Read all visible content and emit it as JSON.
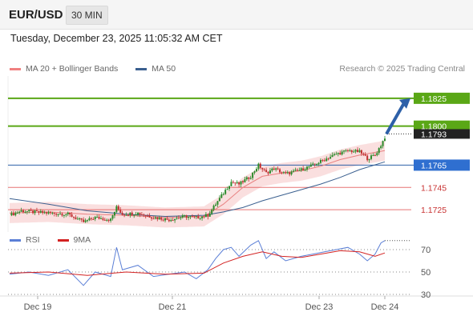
{
  "header": {
    "pair": "EUR/USD",
    "interval": "30 MIN",
    "timestamp": "Tuesday, December 23, 2025 11:05:32 AM CET",
    "credit": "Research © 2025 Trading Central"
  },
  "colors": {
    "green": "#5aa716",
    "blue": "#2d60a8",
    "red": "#e05050",
    "bollinger": "#f3a0a0",
    "ma50": "#3a5f8f",
    "rsi": "#5b7fd6",
    "rsi_ma": "#d32222"
  },
  "chart_data": [
    {
      "type": "candlestick",
      "legend": [
        {
          "label": "MA 20 + Bollinger Bands",
          "color": "#f08080"
        },
        {
          "label": "MA 50",
          "color": "#3a5f8f"
        }
      ],
      "x_ticks": [
        "Dec 19",
        "Dec 21",
        "Dec 23",
        "Dec 24"
      ],
      "ylim": [
        1.1705,
        1.1845
      ],
      "levels": [
        {
          "value": 1.1825,
          "label": "1.1825",
          "style": "green-line"
        },
        {
          "value": 1.18,
          "label": "1.1800",
          "style": "green-line"
        },
        {
          "value": 1.1793,
          "label": "1.1793",
          "style": "current-price"
        },
        {
          "value": 1.1765,
          "label": "1.1765",
          "style": "blue-line"
        },
        {
          "value": 1.1745,
          "label": "1.1745",
          "style": "red-line"
        },
        {
          "value": 1.1725,
          "label": "1.1725",
          "style": "red-line"
        }
      ],
      "target_arrow": {
        "from": 1.1793,
        "to": 1.1825
      },
      "price_path": [
        [
          0,
          1.172
        ],
        [
          6,
          1.1724
        ],
        [
          12,
          1.1723
        ],
        [
          20,
          1.1722
        ],
        [
          30,
          1.1721
        ],
        [
          38,
          1.1714
        ],
        [
          44,
          1.1718
        ],
        [
          52,
          1.1716
        ],
        [
          55,
          1.1727
        ],
        [
          58,
          1.1721
        ],
        [
          66,
          1.1722
        ],
        [
          74,
          1.1718
        ],
        [
          82,
          1.1716
        ],
        [
          90,
          1.1719
        ],
        [
          96,
          1.1718
        ],
        [
          102,
          1.172
        ],
        [
          106,
          1.173
        ],
        [
          110,
          1.174
        ],
        [
          114,
          1.175
        ],
        [
          118,
          1.1748
        ],
        [
          124,
          1.1755
        ],
        [
          128,
          1.1765
        ],
        [
          132,
          1.1758
        ],
        [
          136,
          1.1762
        ],
        [
          142,
          1.1757
        ],
        [
          150,
          1.1761
        ],
        [
          156,
          1.1765
        ],
        [
          162,
          1.177
        ],
        [
          168,
          1.1775
        ],
        [
          174,
          1.1778
        ],
        [
          180,
          1.1777
        ],
        [
          184,
          1.1771
        ],
        [
          188,
          1.1774
        ],
        [
          191,
          1.1783
        ],
        [
          193,
          1.179
        ]
      ],
      "ma20_path": [
        [
          0,
          1.1722
        ],
        [
          20,
          1.1723
        ],
        [
          40,
          1.1721
        ],
        [
          60,
          1.172
        ],
        [
          80,
          1.1718
        ],
        [
          100,
          1.1719
        ],
        [
          110,
          1.173
        ],
        [
          120,
          1.1745
        ],
        [
          130,
          1.1755
        ],
        [
          140,
          1.1758
        ],
        [
          150,
          1.176
        ],
        [
          160,
          1.1764
        ],
        [
          170,
          1.177
        ],
        [
          180,
          1.1774
        ],
        [
          193,
          1.1778
        ]
      ],
      "bollinger_width": 0.0009,
      "ma50_path": [
        [
          0,
          1.1735
        ],
        [
          20,
          1.173
        ],
        [
          40,
          1.1724
        ],
        [
          60,
          1.1721
        ],
        [
          80,
          1.1719
        ],
        [
          100,
          1.172
        ],
        [
          110,
          1.1723
        ],
        [
          120,
          1.1727
        ],
        [
          130,
          1.1733
        ],
        [
          140,
          1.1738
        ],
        [
          150,
          1.1743
        ],
        [
          160,
          1.1748
        ],
        [
          170,
          1.1754
        ],
        [
          180,
          1.1761
        ],
        [
          193,
          1.1768
        ]
      ]
    },
    {
      "type": "line",
      "legend": [
        {
          "label": "RSI",
          "color": "#5b7fd6"
        },
        {
          "label": "9MA",
          "color": "#d32222"
        }
      ],
      "y_ticks": [
        "70",
        "50",
        "30"
      ],
      "ylim": [
        25,
        75
      ],
      "rsi_path": [
        [
          0,
          48
        ],
        [
          10,
          50
        ],
        [
          20,
          47
        ],
        [
          30,
          52
        ],
        [
          38,
          38
        ],
        [
          44,
          50
        ],
        [
          52,
          46
        ],
        [
          55,
          72
        ],
        [
          58,
          52
        ],
        [
          66,
          56
        ],
        [
          74,
          46
        ],
        [
          82,
          48
        ],
        [
          90,
          50
        ],
        [
          96,
          44
        ],
        [
          102,
          52
        ],
        [
          106,
          62
        ],
        [
          110,
          70
        ],
        [
          114,
          72
        ],
        [
          118,
          64
        ],
        [
          124,
          74
        ],
        [
          128,
          78
        ],
        [
          132,
          62
        ],
        [
          136,
          68
        ],
        [
          142,
          60
        ],
        [
          150,
          64
        ],
        [
          156,
          66
        ],
        [
          162,
          68
        ],
        [
          168,
          70
        ],
        [
          174,
          72
        ],
        [
          180,
          66
        ],
        [
          184,
          60
        ],
        [
          188,
          66
        ],
        [
          191,
          76
        ],
        [
          193,
          78
        ]
      ],
      "rsi_ma_path": [
        [
          0,
          49
        ],
        [
          20,
          50
        ],
        [
          40,
          47
        ],
        [
          60,
          50
        ],
        [
          80,
          48
        ],
        [
          100,
          49
        ],
        [
          110,
          58
        ],
        [
          120,
          64
        ],
        [
          130,
          68
        ],
        [
          140,
          64
        ],
        [
          150,
          63
        ],
        [
          160,
          66
        ],
        [
          170,
          69
        ],
        [
          180,
          68
        ],
        [
          188,
          64
        ],
        [
          193,
          67
        ]
      ]
    }
  ]
}
